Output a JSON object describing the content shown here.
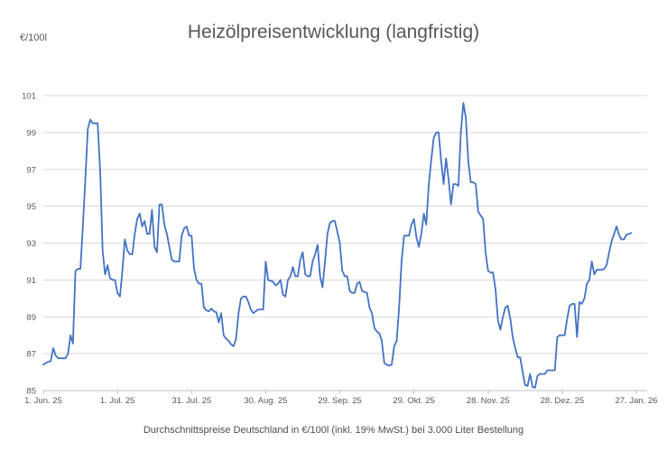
{
  "chart_data": {
    "type": "line",
    "title": "Heizölpreisentwicklung (langfristig)",
    "unit_label": "€/100l",
    "caption": "Durchschnittspreise Deutschland in €/100l (inkl. 19% MwSt.) bei 3.000 Liter Bestellung",
    "ylabel": "€/100l",
    "ylim": [
      85,
      101
    ],
    "y_ticks": [
      85,
      87,
      89,
      91,
      93,
      95,
      97,
      99,
      101
    ],
    "x_tick_labels": [
      "1. Jun. 25",
      "1. Jul. 25",
      "31. Jul. 25",
      "30. Aug. 25",
      "29. Sep. 25",
      "29. Okt. 25",
      "28. Nov. 25",
      "28. Dez. 25",
      "27. Jan. 26"
    ],
    "x_tick_days": [
      0,
      30,
      60,
      90,
      120,
      150,
      180,
      210,
      240
    ],
    "x_range_days": [
      0,
      240
    ],
    "grid": "horizontal-only",
    "legend": "none",
    "line_color": "#4472C4",
    "gridline_color": "#D9D9D9",
    "axis_color": "#BFBFBF",
    "tick_label_color": "#595959",
    "title_color": "#575757",
    "series": [
      {
        "start_day": 0,
        "day_step": 1,
        "values": [
          86.4,
          86.5,
          86.55,
          86.6,
          87.3,
          86.9,
          86.75,
          86.75,
          86.75,
          86.75,
          87.0,
          88.0,
          87.55,
          91.5,
          91.6,
          91.6,
          93.9,
          96.4,
          99.2,
          99.7,
          99.5,
          99.5,
          99.5,
          96.9,
          92.6,
          91.3,
          91.8,
          91.1,
          91.0,
          91.0,
          90.3,
          90.1,
          91.5,
          93.2,
          92.6,
          92.4,
          92.4,
          93.5,
          94.3,
          94.6,
          93.9,
          94.2,
          93.5,
          93.5,
          94.8,
          92.8,
          92.5,
          95.1,
          95.1,
          94.0,
          93.5,
          92.8,
          92.1,
          92.0,
          92.0,
          92.0,
          93.4,
          93.8,
          93.9,
          93.4,
          93.4,
          91.6,
          91.0,
          90.8,
          90.8,
          89.5,
          89.35,
          89.3,
          89.45,
          89.3,
          89.25,
          88.7,
          89.2,
          88.0,
          87.8,
          87.7,
          87.5,
          87.4,
          87.8,
          89.2,
          90.0,
          90.1,
          90.1,
          89.8,
          89.4,
          89.2,
          89.3,
          89.4,
          89.4,
          89.4,
          92.0,
          91.0,
          90.95,
          90.9,
          90.7,
          90.8,
          91.0,
          90.2,
          90.1,
          91.0,
          91.2,
          91.7,
          91.2,
          91.2,
          92.1,
          92.5,
          91.3,
          91.2,
          91.2,
          92.0,
          92.4,
          92.9,
          91.2,
          90.6,
          92.0,
          93.5,
          94.1,
          94.2,
          94.2,
          93.6,
          93.0,
          91.5,
          91.2,
          91.2,
          90.4,
          90.3,
          90.3,
          90.8,
          90.9,
          90.4,
          90.35,
          90.3,
          89.5,
          89.2,
          88.4,
          88.2,
          88.1,
          87.7,
          86.5,
          86.4,
          86.35,
          86.4,
          87.4,
          87.7,
          89.5,
          92.0,
          93.4,
          93.4,
          93.4,
          94.0,
          94.3,
          93.3,
          92.8,
          93.5,
          94.6,
          94.0,
          96.2,
          97.5,
          98.7,
          99.0,
          99.0,
          97.5,
          96.2,
          97.6,
          96.5,
          95.1,
          96.2,
          96.2,
          96.1,
          99.0,
          100.6,
          99.8,
          97.4,
          96.3,
          96.3,
          96.2,
          94.7,
          94.5,
          94.3,
          92.5,
          91.5,
          91.4,
          91.4,
          90.5,
          88.8,
          88.3,
          89.0,
          89.5,
          89.6,
          88.9,
          87.9,
          87.3,
          86.8,
          86.8,
          86.0,
          85.3,
          85.25,
          85.9,
          85.2,
          85.15,
          85.8,
          85.9,
          85.9,
          85.9,
          86.1,
          86.1,
          86.1,
          86.1,
          87.9,
          88.0,
          88.0,
          88.0,
          88.9,
          89.6,
          89.7,
          89.7,
          87.9,
          89.8,
          89.7,
          90.0,
          90.8,
          91.0,
          92.0,
          91.3,
          91.55,
          91.55,
          91.55,
          91.6,
          91.8,
          92.5,
          93.1,
          93.5,
          93.9,
          93.45,
          93.2,
          93.2,
          93.45,
          93.5,
          93.55
        ]
      }
    ]
  }
}
